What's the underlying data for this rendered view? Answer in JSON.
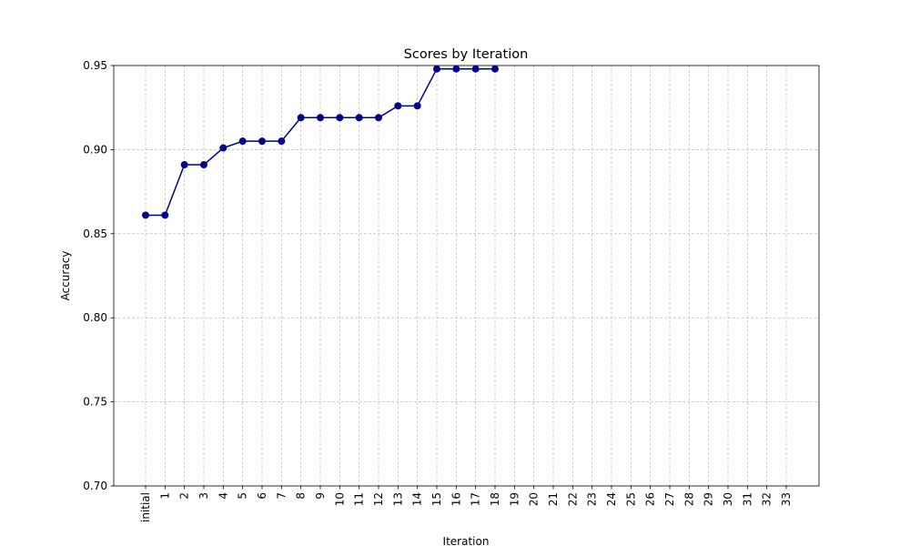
{
  "chart_data": {
    "type": "line",
    "title": "Scores by Iteration",
    "x_label": "Iteration",
    "y_label": "Accuracy",
    "categories": [
      "initial",
      "1",
      "2",
      "3",
      "4",
      "5",
      "6",
      "7",
      "8",
      "9",
      "10",
      "11",
      "12",
      "13",
      "14",
      "15",
      "16",
      "17",
      "18",
      "19",
      "20",
      "21",
      "22",
      "23",
      "24",
      "25",
      "26",
      "27",
      "28",
      "29",
      "30",
      "31",
      "32",
      "33"
    ],
    "series": [
      {
        "name": "Accuracy",
        "color": "#00008b",
        "values": [
          0.861,
          0.861,
          0.891,
          0.891,
          0.901,
          0.905,
          0.905,
          0.905,
          0.919,
          0.919,
          0.919,
          0.919,
          0.919,
          0.926,
          0.926,
          0.948,
          0.948,
          0.948,
          0.948,
          null,
          null,
          null,
          null,
          null,
          null,
          null,
          null,
          null,
          null,
          null,
          null,
          null,
          null,
          null
        ]
      }
    ],
    "ylim": [
      0.7,
      0.95
    ],
    "yticks": [
      {
        "value": 0.7,
        "label": "0.70"
      },
      0.75,
      {
        "value": 0.8,
        "label": "0.80"
      },
      0.85,
      {
        "value": 0.9,
        "label": "0.90"
      },
      0.95
    ],
    "grid": true
  }
}
